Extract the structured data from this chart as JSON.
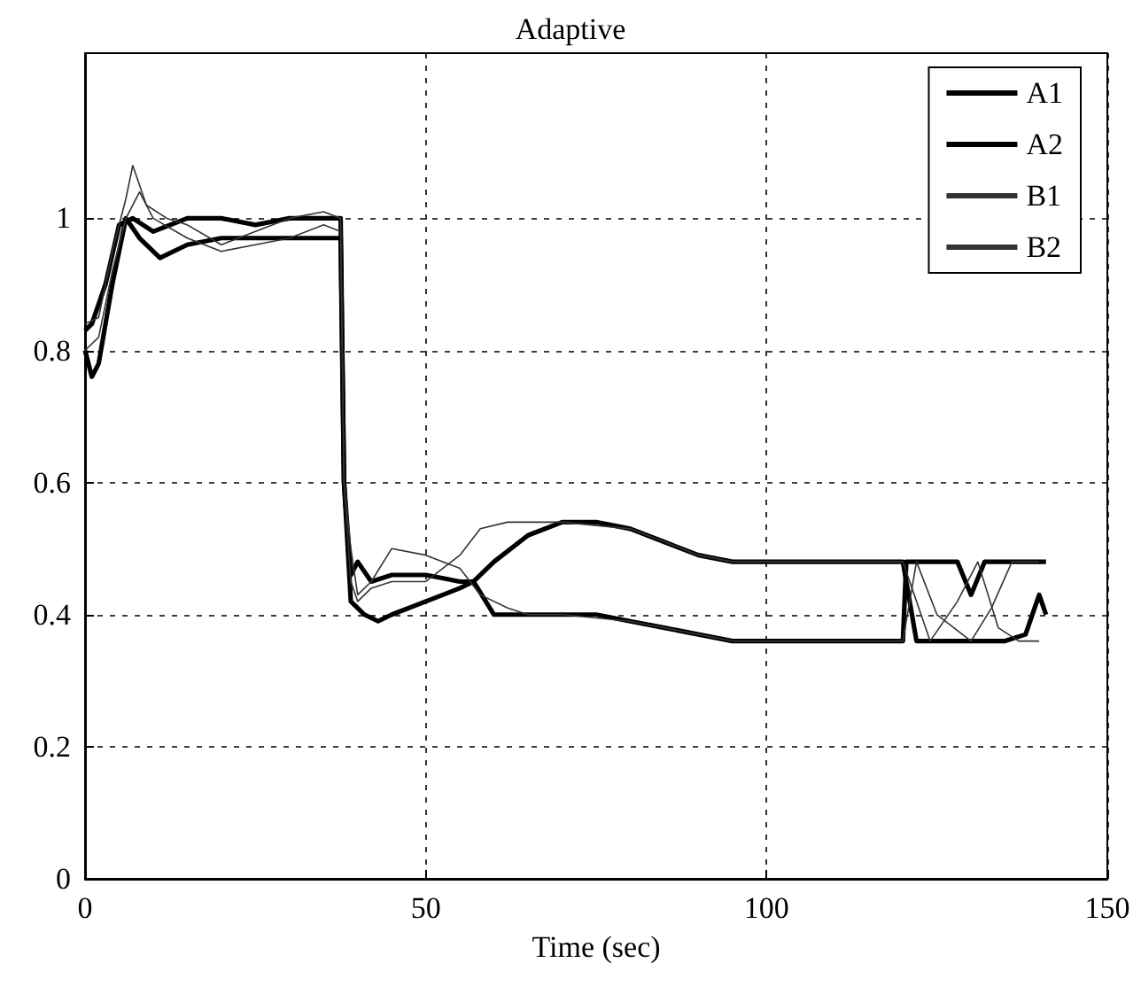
{
  "chart_data": {
    "type": "line",
    "title": "Adaptive",
    "xlabel": "Time (sec)",
    "xlim": [
      0,
      150
    ],
    "xticks": [
      0,
      50,
      100,
      150
    ],
    "ylim": [
      0,
      1.25
    ],
    "yticks": [
      0,
      0.2,
      0.4,
      0.6,
      0.8,
      1
    ],
    "grid": true,
    "legend": "top right",
    "line_style": "solid",
    "series": [
      {
        "name": "A1",
        "color": "#000000",
        "x": [
          0,
          1,
          3,
          5,
          7,
          10,
          15,
          20,
          25,
          30,
          35,
          37.5,
          38,
          39,
          40,
          42,
          45,
          50,
          55,
          57,
          60,
          65,
          70,
          75,
          80,
          85,
          90,
          95,
          100,
          110,
          120,
          121,
          122,
          125,
          130,
          135,
          138,
          140,
          141
        ],
        "values": [
          0.83,
          0.84,
          0.9,
          0.99,
          1.0,
          0.98,
          1.0,
          1.0,
          0.99,
          1.0,
          1.0,
          1.0,
          0.6,
          0.46,
          0.48,
          0.45,
          0.46,
          0.46,
          0.45,
          0.45,
          0.48,
          0.52,
          0.54,
          0.54,
          0.53,
          0.51,
          0.49,
          0.48,
          0.48,
          0.48,
          0.48,
          0.42,
          0.36,
          0.36,
          0.36,
          0.36,
          0.37,
          0.43,
          0.4
        ]
      },
      {
        "name": "A2",
        "color": "#000000",
        "x": [
          0,
          1,
          2,
          4,
          6,
          8,
          11,
          15,
          20,
          25,
          30,
          35,
          37.5,
          38,
          39,
          41,
          43,
          45,
          50,
          55,
          57,
          60,
          65,
          70,
          75,
          80,
          85,
          90,
          95,
          100,
          110,
          120,
          120.5,
          125,
          128,
          130,
          132,
          135,
          141
        ],
        "values": [
          0.8,
          0.76,
          0.78,
          0.9,
          1.0,
          0.97,
          0.94,
          0.96,
          0.97,
          0.97,
          0.97,
          0.97,
          0.97,
          0.6,
          0.42,
          0.4,
          0.39,
          0.4,
          0.42,
          0.44,
          0.45,
          0.4,
          0.4,
          0.4,
          0.4,
          0.39,
          0.38,
          0.37,
          0.36,
          0.36,
          0.36,
          0.36,
          0.48,
          0.48,
          0.48,
          0.43,
          0.48,
          0.48,
          0.48
        ]
      },
      {
        "name": "B1",
        "color": "#333333",
        "x": [
          0,
          2,
          4,
          6,
          7,
          9,
          12,
          15,
          20,
          25,
          30,
          35,
          37.5,
          38,
          39,
          40,
          42,
          45,
          50,
          55,
          58,
          62,
          65,
          70,
          80,
          90,
          95,
          100,
          110,
          120,
          122,
          125,
          130,
          133,
          136,
          140
        ],
        "values": [
          0.84,
          0.85,
          0.95,
          1.03,
          1.08,
          1.02,
          1.0,
          0.99,
          0.96,
          0.98,
          1.0,
          1.01,
          1.0,
          0.6,
          0.5,
          0.43,
          0.45,
          0.5,
          0.49,
          0.47,
          0.43,
          0.41,
          0.4,
          0.4,
          0.39,
          0.37,
          0.36,
          0.36,
          0.36,
          0.36,
          0.48,
          0.4,
          0.36,
          0.41,
          0.48,
          0.48
        ]
      },
      {
        "name": "B2",
        "color": "#333333",
        "x": [
          0,
          2,
          4,
          6,
          8,
          10,
          15,
          20,
          25,
          30,
          35,
          37.5,
          38,
          39,
          40,
          42,
          45,
          50,
          55,
          58,
          62,
          70,
          80,
          90,
          95,
          100,
          110,
          120,
          124,
          128,
          131,
          134,
          137,
          140
        ],
        "values": [
          0.8,
          0.82,
          0.92,
          1.0,
          1.04,
          1.0,
          0.97,
          0.95,
          0.96,
          0.97,
          0.99,
          0.98,
          0.6,
          0.45,
          0.42,
          0.44,
          0.45,
          0.45,
          0.49,
          0.53,
          0.54,
          0.54,
          0.53,
          0.49,
          0.48,
          0.48,
          0.48,
          0.48,
          0.36,
          0.42,
          0.48,
          0.38,
          0.36,
          0.36
        ]
      }
    ]
  }
}
